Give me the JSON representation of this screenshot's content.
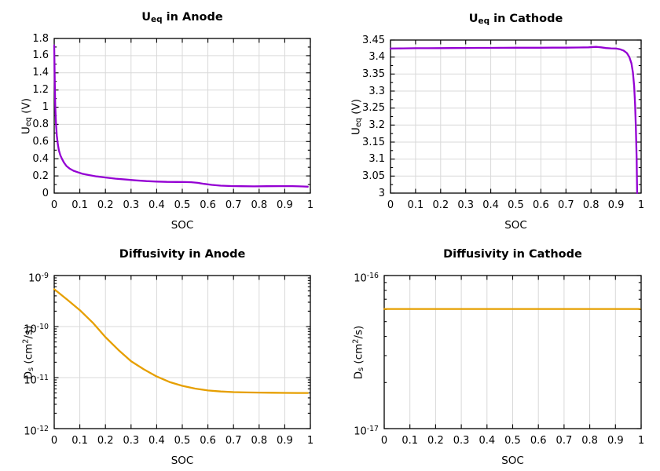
{
  "figure": {
    "background": "#ffffff",
    "text_color": "#000000",
    "grid_color": "#d9d9d9",
    "axis_color": "#000000"
  },
  "chart_data": [
    {
      "id": "ueq_anode",
      "type": "line",
      "title": "U_{eq} in Anode",
      "xlabel": "SOC",
      "ylabel": "U_{eq} (V)",
      "legend": "none",
      "grid": "on",
      "line_color": "#9400d3",
      "xlim": [
        0,
        1
      ],
      "xtick_values": [
        0,
        0.1,
        0.2,
        0.3,
        0.4,
        0.5,
        0.6,
        0.7,
        0.8,
        0.9,
        1
      ],
      "xtick_labels": [
        "0",
        "0.1",
        "0.2",
        "0.3",
        "0.4",
        "0.5",
        "0.6",
        "0.7",
        "0.8",
        "0.9",
        "1"
      ],
      "yscale": "linear",
      "ylim": [
        0,
        1.8
      ],
      "ytick_values": [
        0,
        0.2,
        0.4,
        0.6,
        0.8,
        1,
        1.2,
        1.4,
        1.6,
        1.8
      ],
      "ytick_labels": [
        "0",
        "0.2",
        "0.4",
        "0.6",
        "0.8",
        "1",
        "1.2",
        "1.4",
        "1.6",
        "1.8"
      ],
      "x": [
        0,
        0.002,
        0.004,
        0.007,
        0.01,
        0.014,
        0.018,
        0.024,
        0.03,
        0.038,
        0.048,
        0.06,
        0.075,
        0.09,
        0.11,
        0.135,
        0.165,
        0.2,
        0.24,
        0.28,
        0.32,
        0.36,
        0.4,
        0.44,
        0.48,
        0.51,
        0.535,
        0.56,
        0.585,
        0.615,
        0.65,
        0.69,
        0.73,
        0.78,
        0.83,
        0.88,
        0.93,
        0.97,
        0.99
      ],
      "y": [
        1.72,
        1.3,
        1.02,
        0.8,
        0.67,
        0.57,
        0.5,
        0.44,
        0.4,
        0.355,
        0.315,
        0.285,
        0.26,
        0.245,
        0.225,
        0.21,
        0.195,
        0.182,
        0.168,
        0.158,
        0.148,
        0.14,
        0.134,
        0.131,
        0.13,
        0.129,
        0.127,
        0.12,
        0.108,
        0.096,
        0.087,
        0.082,
        0.08,
        0.079,
        0.08,
        0.081,
        0.081,
        0.078,
        0.075
      ]
    },
    {
      "id": "ueq_cathode",
      "type": "line",
      "title": "U_{eq} in Cathode",
      "xlabel": "SOC",
      "ylabel": "U_{eq} (V)",
      "legend": "none",
      "grid": "on",
      "line_color": "#9400d3",
      "xlim": [
        0,
        1
      ],
      "xtick_values": [
        0,
        0.1,
        0.2,
        0.3,
        0.4,
        0.5,
        0.6,
        0.7,
        0.8,
        0.9,
        1
      ],
      "xtick_labels": [
        "0",
        "0.1",
        "0.2",
        "0.3",
        "0.4",
        "0.5",
        "0.6",
        "0.7",
        "0.8",
        "0.9",
        "1"
      ],
      "yscale": "linear",
      "ylim": [
        3,
        3.45
      ],
      "ytick_values": [
        3,
        3.05,
        3.1,
        3.15,
        3.2,
        3.25,
        3.3,
        3.35,
        3.4,
        3.45
      ],
      "ytick_labels": [
        "3",
        "3.05",
        "3.1",
        "3.15",
        "3.2",
        "3.25",
        "3.3",
        "3.35",
        "3.4",
        "3.45"
      ],
      "x": [
        0,
        0.05,
        0.1,
        0.15,
        0.2,
        0.25,
        0.3,
        0.35,
        0.4,
        0.45,
        0.5,
        0.55,
        0.6,
        0.65,
        0.7,
        0.75,
        0.79,
        0.82,
        0.84,
        0.86,
        0.88,
        0.9,
        0.915,
        0.93,
        0.943,
        0.953,
        0.961,
        0.967,
        0.972,
        0.976,
        0.979,
        0.982,
        0.984
      ],
      "y": [
        3.425,
        3.4255,
        3.426,
        3.426,
        3.4262,
        3.4265,
        3.4268,
        3.427,
        3.427,
        3.4272,
        3.4273,
        3.4274,
        3.4275,
        3.4276,
        3.4277,
        3.428,
        3.4285,
        3.43,
        3.4285,
        3.4265,
        3.4255,
        3.425,
        3.423,
        3.419,
        3.412,
        3.4,
        3.382,
        3.355,
        3.315,
        3.26,
        3.19,
        3.1,
        3.0
      ]
    },
    {
      "id": "ds_anode",
      "type": "line",
      "title": "Diffusivity in Anode",
      "xlabel": "SOC",
      "ylabel": "D_{s} (cm^{2}/s)",
      "legend": "none",
      "grid": "on",
      "line_color": "#e69f00",
      "xlim": [
        0,
        1
      ],
      "xtick_values": [
        0,
        0.1,
        0.2,
        0.3,
        0.4,
        0.5,
        0.6,
        0.7,
        0.8,
        0.9,
        1
      ],
      "xtick_labels": [
        "0",
        "0.1",
        "0.2",
        "0.3",
        "0.4",
        "0.5",
        "0.6",
        "0.7",
        "0.8",
        "0.9",
        "1"
      ],
      "yscale": "log",
      "ylim": [
        1e-12,
        1e-09
      ],
      "ytick_values": [
        1e-12,
        1e-11,
        1e-10,
        1e-09
      ],
      "ytick_labels": [
        "10^{-12}",
        "10^{-11}",
        "10^{-10}",
        "10^{-9}"
      ],
      "x": [
        0,
        0.05,
        0.1,
        0.15,
        0.2,
        0.25,
        0.3,
        0.35,
        0.4,
        0.45,
        0.5,
        0.55,
        0.6,
        0.65,
        0.7,
        0.75,
        0.8,
        0.85,
        0.9,
        0.95,
        0.99
      ],
      "y": [
        5.4e-10,
        3.4e-10,
        2.1e-10,
        1.2e-10,
        6.2e-11,
        3.5e-11,
        2.1e-11,
        1.45e-11,
        1.05e-11,
        8.2e-12,
        6.9e-12,
        6.1e-12,
        5.6e-12,
        5.35e-12,
        5.2e-12,
        5.12e-12,
        5.08e-12,
        5.04e-12,
        5.02e-12,
        5e-12,
        5e-12
      ]
    },
    {
      "id": "ds_cathode",
      "type": "line",
      "title": "Diffusivity in Cathode",
      "xlabel": "SOC",
      "ylabel": "D_{s} (cm^{2}/s)",
      "legend": "none",
      "grid": "on",
      "line_color": "#e69f00",
      "xlim": [
        0,
        1
      ],
      "xtick_values": [
        0,
        0.1,
        0.2,
        0.3,
        0.4,
        0.5,
        0.6,
        0.7,
        0.8,
        0.9,
        1
      ],
      "xtick_labels": [
        "0",
        "0.1",
        "0.2",
        "0.3",
        "0.4",
        "0.5",
        "0.6",
        "0.7",
        "0.8",
        "0.9",
        "1"
      ],
      "yscale": "log",
      "ylim": [
        1e-17,
        1e-16
      ],
      "ytick_values": [
        1e-17,
        1e-16
      ],
      "ytick_labels": [
        "10^{-17}",
        "10^{-16}"
      ],
      "x": [
        0,
        0.995
      ],
      "y": [
        6.05e-17,
        6.05e-17
      ]
    }
  ]
}
